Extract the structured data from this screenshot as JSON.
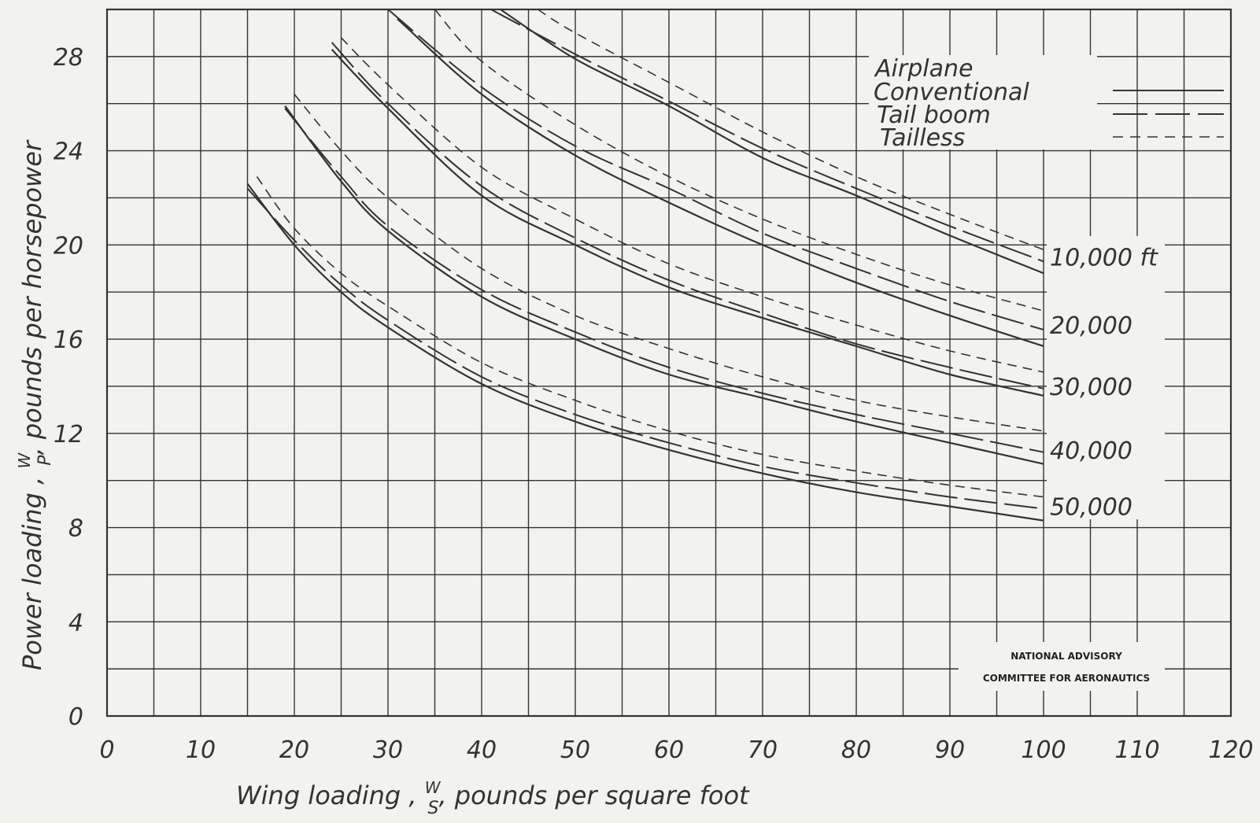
{
  "chart_data": {
    "type": "line",
    "xlabel": "Wing loading , W/S , pounds per square foot",
    "xlabel_parts": {
      "pre": "Wing loading , ",
      "num": "W",
      "den": "S",
      "post": ", pounds per square foot"
    },
    "ylabel": "Power loading , W/P , pounds per horsepower",
    "ylabel_parts": {
      "pre": "Power loading , ",
      "num": "W",
      "den": "P",
      "post": ", pounds per horsepower"
    },
    "xlim": [
      0,
      120
    ],
    "ylim": [
      0,
      30
    ],
    "x_ticks": [
      "0",
      "10",
      "20",
      "30",
      "40",
      "50",
      "60",
      "70",
      "80",
      "90",
      "100",
      "110",
      "120"
    ],
    "y_ticks": [
      "0",
      "4",
      "8",
      "12",
      "16",
      "20",
      "24",
      "28"
    ],
    "grid": true,
    "legend": {
      "title": "Airplane",
      "placement": "top-right",
      "entries": [
        {
          "name": "Conventional",
          "style": "solid"
        },
        {
          "name": "Tail boom",
          "style": "long-dash"
        },
        {
          "name": "Tailless",
          "style": "short-dash"
        }
      ]
    },
    "altitude_labels": [
      {
        "text": "10,000 ft",
        "y": 19.5
      },
      {
        "text": "20,000",
        "y": 16.6
      },
      {
        "text": "30,000",
        "y": 14.0
      },
      {
        "text": "40,000",
        "y": 11.3
      },
      {
        "text": "50,000",
        "y": 8.9
      }
    ],
    "series": [
      {
        "altitude": "10,000 ft",
        "airplane": "Conventional",
        "style": "solid",
        "x": [
          42,
          50,
          60,
          70,
          80,
          90,
          100
        ],
        "y": [
          30.0,
          27.9,
          25.9,
          23.7,
          22.1,
          20.4,
          18.8
        ]
      },
      {
        "altitude": "10,000 ft",
        "airplane": "Tail boom",
        "style": "long-dash",
        "x": [
          41,
          50,
          60,
          70,
          80,
          90,
          100
        ],
        "y": [
          30.0,
          28.1,
          26.1,
          24.1,
          22.4,
          20.8,
          19.3
        ]
      },
      {
        "altitude": "10,000 ft",
        "airplane": "Tailless",
        "style": "short-dash",
        "x": [
          46,
          50,
          60,
          70,
          80,
          90,
          100
        ],
        "y": [
          30.0,
          29.0,
          26.9,
          24.8,
          22.9,
          21.3,
          19.8
        ]
      },
      {
        "altitude": "20,000",
        "airplane": "Conventional",
        "style": "solid",
        "x": [
          31,
          40,
          50,
          60,
          70,
          80,
          90,
          100
        ],
        "y": [
          29.6,
          26.4,
          23.8,
          21.8,
          20.0,
          18.4,
          17.0,
          15.7
        ]
      },
      {
        "altitude": "20,000",
        "airplane": "Tail boom",
        "style": "long-dash",
        "x": [
          30,
          40,
          50,
          60,
          70,
          80,
          90,
          100
        ],
        "y": [
          30.0,
          26.7,
          24.2,
          22.4,
          20.5,
          19.0,
          17.6,
          16.4
        ]
      },
      {
        "altitude": "20,000",
        "airplane": "Tailless",
        "style": "short-dash",
        "x": [
          35,
          40,
          50,
          60,
          70,
          80,
          90,
          100
        ],
        "y": [
          30.0,
          27.8,
          25.1,
          22.9,
          21.1,
          19.6,
          18.3,
          17.2
        ]
      },
      {
        "altitude": "30,000",
        "airplane": "Conventional",
        "style": "solid",
        "x": [
          24,
          30,
          40,
          50,
          60,
          70,
          80,
          90,
          100
        ],
        "y": [
          28.3,
          25.8,
          22.1,
          20.0,
          18.2,
          16.9,
          15.7,
          14.5,
          13.6
        ]
      },
      {
        "altitude": "30,000",
        "airplane": "Tail boom",
        "style": "long-dash",
        "x": [
          24,
          30,
          40,
          50,
          60,
          70,
          80,
          90,
          100
        ],
        "y": [
          28.6,
          26.0,
          22.5,
          20.3,
          18.5,
          17.1,
          15.8,
          14.8,
          13.9
        ]
      },
      {
        "altitude": "30,000",
        "airplane": "Tailless",
        "style": "short-dash",
        "x": [
          25,
          30,
          40,
          50,
          60,
          70,
          80,
          90,
          100
        ],
        "y": [
          28.8,
          26.8,
          23.3,
          21.1,
          19.2,
          17.8,
          16.6,
          15.5,
          14.6
        ]
      },
      {
        "altitude": "40,000",
        "airplane": "Conventional",
        "style": "solid",
        "x": [
          19,
          25,
          30,
          40,
          50,
          60,
          70,
          80,
          90,
          100
        ],
        "y": [
          25.9,
          22.7,
          20.6,
          17.8,
          16.0,
          14.5,
          13.5,
          12.5,
          11.6,
          10.7
        ]
      },
      {
        "altitude": "40,000",
        "airplane": "Tail boom",
        "style": "long-dash",
        "x": [
          19,
          25,
          30,
          40,
          50,
          60,
          70,
          80,
          90,
          100
        ],
        "y": [
          25.8,
          22.9,
          20.8,
          18.1,
          16.3,
          14.8,
          13.7,
          12.8,
          12.0,
          11.2
        ]
      },
      {
        "altitude": "40,000",
        "airplane": "Tailless",
        "style": "short-dash",
        "x": [
          20,
          25,
          30,
          40,
          50,
          60,
          70,
          80,
          90,
          100
        ],
        "y": [
          26.4,
          24.0,
          22.0,
          19.0,
          17.0,
          15.6,
          14.4,
          13.4,
          12.7,
          12.1
        ]
      },
      {
        "altitude": "50,000",
        "airplane": "Conventional",
        "style": "solid",
        "x": [
          15,
          20,
          25,
          30,
          40,
          50,
          60,
          70,
          80,
          90,
          100
        ],
        "y": [
          22.6,
          20.0,
          18.0,
          16.5,
          14.1,
          12.5,
          11.3,
          10.3,
          9.5,
          8.9,
          8.3
        ]
      },
      {
        "altitude": "50,000",
        "airplane": "Tail boom",
        "style": "long-dash",
        "x": [
          15,
          20,
          25,
          30,
          40,
          50,
          60,
          70,
          80,
          90,
          100
        ],
        "y": [
          22.4,
          20.2,
          18.3,
          16.8,
          14.4,
          12.8,
          11.6,
          10.6,
          9.9,
          9.3,
          8.8
        ]
      },
      {
        "altitude": "50,000",
        "airplane": "Tailless",
        "style": "short-dash",
        "x": [
          16,
          20,
          25,
          30,
          40,
          50,
          60,
          70,
          80,
          90,
          100
        ],
        "y": [
          22.9,
          20.7,
          18.8,
          17.4,
          15.0,
          13.4,
          12.1,
          11.1,
          10.4,
          9.8,
          9.3
        ]
      }
    ]
  },
  "stamp": {
    "line1": "NATIONAL ADVISORY",
    "line2": "COMMITTEE FOR AERONAUTICS"
  },
  "colors": {
    "ink": "#333333",
    "paper": "#f2f2ee"
  }
}
